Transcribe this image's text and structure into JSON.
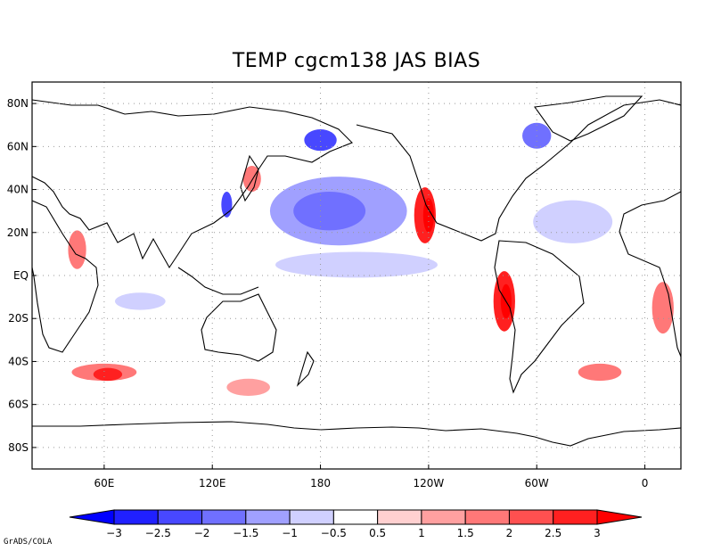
{
  "title": "TEMP cgcm138 JAS  BIAS",
  "credit": "GrADS/COLA",
  "map": {
    "lon_range": [
      20,
      380
    ],
    "lat_range": [
      -90,
      90
    ],
    "lon_ticks": [
      {
        "value": 60,
        "label": "60E"
      },
      {
        "value": 120,
        "label": "120E"
      },
      {
        "value": 180,
        "label": "180"
      },
      {
        "value": 240,
        "label": "120W"
      },
      {
        "value": 300,
        "label": "60W"
      },
      {
        "value": 360,
        "label": "0"
      }
    ],
    "lat_ticks": [
      {
        "value": 80,
        "label": "80N"
      },
      {
        "value": 60,
        "label": "60N"
      },
      {
        "value": 40,
        "label": "40N"
      },
      {
        "value": 20,
        "label": "20N"
      },
      {
        "value": 0,
        "label": "EQ"
      },
      {
        "value": -20,
        "label": "20S"
      },
      {
        "value": -40,
        "label": "40S"
      },
      {
        "value": -60,
        "label": "60S"
      },
      {
        "value": -80,
        "label": "80S"
      }
    ],
    "bias_regions": [
      {
        "name": "north-pacific-cold",
        "lon": 190,
        "lat": 30,
        "rlon": 38,
        "rlat": 16,
        "value": -1.5
      },
      {
        "name": "north-pacific-cold-core",
        "lon": 185,
        "lat": 30,
        "rlon": 20,
        "rlat": 9,
        "value": -2.0
      },
      {
        "name": "california-warm",
        "lon": 238,
        "lat": 28,
        "rlon": 6,
        "rlat": 13,
        "value": 2.5
      },
      {
        "name": "california-warm-core",
        "lon": 240,
        "lat": 28,
        "rlon": 3,
        "rlat": 8,
        "value": 3.0
      },
      {
        "name": "peru-warm",
        "lon": 282,
        "lat": -12,
        "rlon": 6,
        "rlat": 14,
        "value": 2.5
      },
      {
        "name": "peru-warm-core",
        "lon": 283,
        "lat": -12,
        "rlon": 3,
        "rlat": 8,
        "value": 3.0
      },
      {
        "name": "namibia-warm",
        "lon": 370,
        "lat": -15,
        "rlon": 6,
        "rlat": 12,
        "value": 1.5
      },
      {
        "name": "bering-cold",
        "lon": 180,
        "lat": 63,
        "rlon": 9,
        "rlat": 5,
        "value": -2.5
      },
      {
        "name": "north-atlantic-cold",
        "lon": 320,
        "lat": 25,
        "rlon": 22,
        "rlat": 10,
        "value": -1.0
      },
      {
        "name": "tropical-pacific-cold",
        "lon": 200,
        "lat": 5,
        "rlon": 45,
        "rlat": 6,
        "value": -0.8
      },
      {
        "name": "southern-ocean-warm",
        "lon": 60,
        "lat": -45,
        "rlon": 18,
        "rlat": 4,
        "value": 1.5
      },
      {
        "name": "southern-ocean-warm-core",
        "lon": 62,
        "lat": -46,
        "rlon": 8,
        "rlat": 3,
        "value": 2.5
      },
      {
        "name": "arabian-sea-warm",
        "lon": 45,
        "lat": 12,
        "rlon": 5,
        "rlat": 9,
        "value": 1.5
      },
      {
        "name": "indian-ocean-cold",
        "lon": 80,
        "lat": -12,
        "rlon": 14,
        "rlat": 4,
        "value": -0.8
      },
      {
        "name": "south-pacific-warm",
        "lon": 140,
        "lat": -52,
        "rlon": 12,
        "rlat": 4,
        "value": 1.2
      },
      {
        "name": "greenland-cold",
        "lon": 300,
        "lat": 65,
        "rlon": 8,
        "rlat": 6,
        "value": -2.0
      },
      {
        "name": "south-atlantic-warm",
        "lon": 335,
        "lat": -45,
        "rlon": 12,
        "rlat": 4,
        "value": 1.5
      },
      {
        "name": "japan-warm",
        "lon": 142,
        "lat": 45,
        "rlon": 5,
        "rlat": 6,
        "value": 1.5
      },
      {
        "name": "east-china-sea-cold",
        "lon": 128,
        "lat": 33,
        "rlon": 3,
        "rlat": 6,
        "value": -2.5
      }
    ]
  },
  "colorbar": {
    "labels": [
      "-3",
      "-2.5",
      "-2",
      "-1.5",
      "-1",
      "-0.5",
      "0.5",
      "1",
      "1.5",
      "2",
      "2.5",
      "3"
    ],
    "colors": [
      "#2020ff",
      "#4848ff",
      "#7070ff",
      "#a0a0ff",
      "#d0d0ff",
      "#ffffff",
      "#ffd0d0",
      "#ffa0a0",
      "#ff7878",
      "#ff5050",
      "#ff2020"
    ],
    "under_color": "#0000ff",
    "over_color": "#ff0000"
  }
}
